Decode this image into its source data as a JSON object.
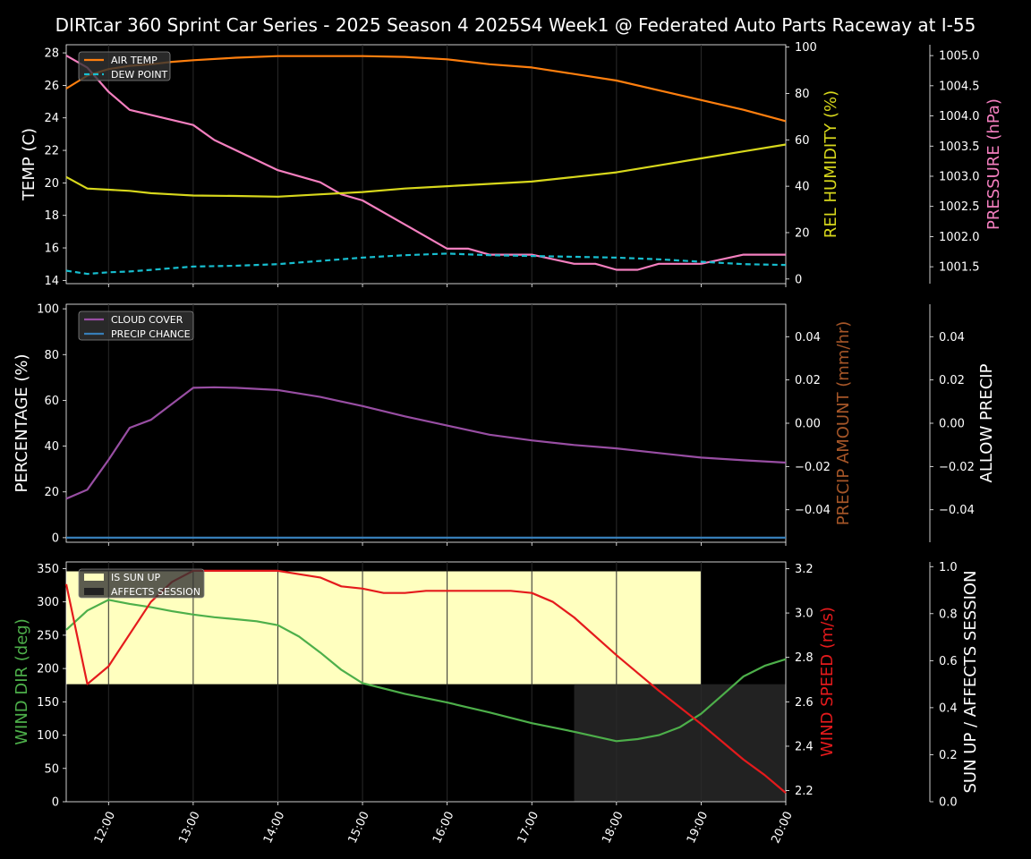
{
  "title": "DIRTcar 360 Sprint Car Series - 2025 Season 4 2025S4 Week1 @ Federated Auto Parts Raceway at I-55",
  "colors": {
    "air_temp": "#ff7f0e",
    "dew_point": "#17becf",
    "humidity": "#d8d81c",
    "pressure": "#f47fbf",
    "cloud": "#984ea3",
    "precip_chance": "#377eb8",
    "precip_amount": "#a65628",
    "wind_dir": "#4daf4a",
    "wind_speed": "#e41a1c",
    "sun_up": "#ffffbf",
    "affects_session": "#222222"
  },
  "chart_data": [
    {
      "type": "line",
      "panel": "atmosphere",
      "x_ticks": [
        "12:00",
        "13:00",
        "14:00",
        "15:00",
        "16:00",
        "17:00",
        "18:00",
        "19:00",
        "20:00"
      ],
      "xlim": [
        "11:30",
        "20:00"
      ],
      "axes": {
        "temp": {
          "label": "TEMP (C)",
          "ylim": [
            13.8,
            28.5
          ],
          "ticks": [
            "14",
            "16",
            "18",
            "20",
            "22",
            "24",
            "26",
            "28"
          ]
        },
        "humidity": {
          "label": "REL HUMIDITY (%)",
          "ylim": [
            -2,
            101
          ],
          "ticks": [
            "0",
            "20",
            "40",
            "60",
            "80",
            "100"
          ]
        },
        "pressure": {
          "label": "PRESSURE (hPa)",
          "ylim": [
            1001.22,
            1005.18
          ],
          "ticks": [
            "1001.5",
            "1002.0",
            "1002.5",
            "1003.0",
            "1003.5",
            "1004.0",
            "1004.5",
            "1005.0"
          ]
        }
      },
      "legend": [
        "AIR TEMP",
        "DEW POINT"
      ],
      "legend_position": "top-left",
      "series": [
        {
          "name": "AIR TEMP",
          "axis": "temp",
          "x": [
            "11:30",
            "11:45",
            "12:00",
            "12:15",
            "12:30",
            "12:45",
            "13:00",
            "13:30",
            "14:00",
            "14:30",
            "15:00",
            "15:30",
            "16:00",
            "16:30",
            "17:00",
            "17:30",
            "18:00",
            "18:30",
            "19:00",
            "19:30",
            "20:00"
          ],
          "values": [
            25.8,
            26.6,
            27.0,
            27.2,
            27.3,
            27.45,
            27.55,
            27.7,
            27.8,
            27.8,
            27.8,
            27.75,
            27.6,
            27.3,
            27.1,
            26.7,
            26.3,
            25.7,
            25.1,
            24.5,
            23.8
          ]
        },
        {
          "name": "DEW POINT",
          "axis": "temp",
          "x": [
            "11:30",
            "11:45",
            "12:00",
            "12:15",
            "12:30",
            "12:45",
            "13:00",
            "13:30",
            "14:00",
            "14:30",
            "15:00",
            "15:30",
            "16:00",
            "16:30",
            "17:00",
            "17:30",
            "18:00",
            "18:30",
            "19:00",
            "19:30",
            "20:00"
          ],
          "values": [
            14.6,
            14.4,
            14.5,
            14.55,
            14.65,
            14.75,
            14.85,
            14.9,
            15.0,
            15.2,
            15.4,
            15.55,
            15.65,
            15.55,
            15.5,
            15.45,
            15.4,
            15.3,
            15.15,
            15.0,
            14.95
          ]
        },
        {
          "name": "REL HUMIDITY",
          "axis": "humidity",
          "x": [
            "11:30",
            "11:45",
            "12:00",
            "12:15",
            "12:30",
            "12:45",
            "13:00",
            "13:30",
            "14:00",
            "14:30",
            "15:00",
            "15:30",
            "16:00",
            "16:30",
            "17:00",
            "17:30",
            "18:00",
            "18:30",
            "19:00",
            "19:30",
            "20:00"
          ],
          "values": [
            44,
            39,
            38.5,
            38,
            37,
            36.5,
            36,
            35.8,
            35.5,
            36.5,
            37.5,
            39,
            40,
            41,
            42,
            44,
            46,
            49,
            52,
            55,
            58
          ]
        },
        {
          "name": "PRESSURE",
          "axis": "pressure",
          "x": [
            "11:30",
            "11:45",
            "12:00",
            "12:15",
            "13:00",
            "13:15",
            "14:00",
            "14:30",
            "14:45",
            "15:00",
            "15:30",
            "16:00",
            "16:15",
            "16:30",
            "17:00",
            "17:30",
            "17:45",
            "18:00",
            "18:15",
            "18:30",
            "19:00",
            "19:30",
            "20:00"
          ],
          "values": [
            1005.0,
            1004.8,
            1004.4,
            1004.1,
            1003.85,
            1003.6,
            1003.1,
            1002.9,
            1002.7,
            1002.6,
            1002.2,
            1001.8,
            1001.8,
            1001.7,
            1001.7,
            1001.55,
            1001.55,
            1001.45,
            1001.45,
            1001.55,
            1001.55,
            1001.7,
            1001.7
          ]
        }
      ]
    },
    {
      "type": "line",
      "panel": "precipitation",
      "x_ticks": [
        "12:00",
        "13:00",
        "14:00",
        "15:00",
        "16:00",
        "17:00",
        "18:00",
        "19:00",
        "20:00"
      ],
      "xlim": [
        "11:30",
        "20:00"
      ],
      "axes": {
        "percentage": {
          "label": "PERCENTAGE (%)",
          "ylim": [
            -2,
            102
          ],
          "ticks": [
            "0",
            "20",
            "40",
            "60",
            "80",
            "100"
          ]
        },
        "precip_amount": {
          "label": "PRECIP AMOUNT (mm/hr)",
          "ylim": [
            -0.055,
            0.055
          ],
          "ticks": [
            "0.04",
            "0.02",
            "0.00",
            "−0.02",
            "−0.04"
          ]
        },
        "allow_precip": {
          "label": "ALLOW PRECIP",
          "ylim": [
            -0.055,
            0.055
          ],
          "ticks": [
            "0.04",
            "0.02",
            "0.00",
            "−0.02",
            "−0.04"
          ]
        }
      },
      "legend": [
        "CLOUD COVER",
        "PRECIP CHANCE"
      ],
      "legend_position": "top-left",
      "series": [
        {
          "name": "CLOUD COVER",
          "axis": "percentage",
          "x": [
            "11:30",
            "11:45",
            "12:00",
            "12:15",
            "12:30",
            "13:00",
            "13:15",
            "13:30",
            "14:00",
            "14:30",
            "15:00",
            "15:30",
            "16:00",
            "16:30",
            "17:00",
            "17:30",
            "18:00",
            "18:30",
            "19:00",
            "19:30",
            "20:00"
          ],
          "values": [
            17,
            21,
            34,
            48,
            51.5,
            65.5,
            65.7,
            65.5,
            64.5,
            61.5,
            57.5,
            53,
            49,
            45,
            42.5,
            40.5,
            39,
            37,
            35,
            33.8,
            32.8
          ]
        },
        {
          "name": "PRECIP CHANCE",
          "axis": "percentage",
          "x": [
            "11:30",
            "20:00"
          ],
          "values": [
            0,
            0
          ]
        }
      ]
    },
    {
      "type": "line",
      "panel": "wind",
      "x_ticks": [
        "12:00",
        "13:00",
        "14:00",
        "15:00",
        "16:00",
        "17:00",
        "18:00",
        "19:00",
        "20:00"
      ],
      "xlim": [
        "11:30",
        "20:00"
      ],
      "axes": {
        "wind_dir": {
          "label": "WIND DIR (deg)",
          "ylim": [
            0,
            360
          ],
          "ticks": [
            "0",
            "50",
            "100",
            "150",
            "200",
            "250",
            "300",
            "350"
          ]
        },
        "wind_speed": {
          "label": "WIND SPEED (m/s)",
          "ylim": [
            2.15,
            3.23
          ],
          "ticks": [
            "2.2",
            "2.4",
            "2.6",
            "2.8",
            "3.0",
            "3.2"
          ]
        },
        "sun_session": {
          "label": "SUN UP / AFFECTS SESSION",
          "ylim": [
            0,
            1.02
          ],
          "ticks": [
            "0.0",
            "0.2",
            "0.4",
            "0.6",
            "0.8",
            "1.0"
          ]
        }
      },
      "legend": [
        "IS SUN UP",
        "AFFECTS SESSION"
      ],
      "legend_position": "top-left",
      "bands": [
        {
          "name": "IS SUN UP",
          "x_start": "11:30",
          "x_end": "19:00",
          "y": [
            0.5,
            0.98
          ]
        },
        {
          "name": "AFFECTS SESSION",
          "x_start": "17:30",
          "x_end": "20:00",
          "y": [
            0,
            0.5
          ]
        }
      ],
      "series": [
        {
          "name": "WIND DIR",
          "axis": "wind_dir",
          "x": [
            "11:30",
            "11:45",
            "12:00",
            "12:15",
            "12:30",
            "12:45",
            "13:00",
            "13:15",
            "13:30",
            "13:45",
            "14:00",
            "14:15",
            "14:30",
            "14:45",
            "15:00",
            "15:30",
            "16:00",
            "16:30",
            "17:00",
            "17:30",
            "18:00",
            "18:15",
            "18:30",
            "18:45",
            "19:00",
            "19:15",
            "19:30",
            "19:45",
            "20:00"
          ],
          "values": [
            258,
            287,
            303,
            297,
            292,
            286,
            281,
            277,
            274,
            271,
            265,
            248,
            224,
            198,
            178,
            162,
            149,
            134,
            118,
            105,
            91,
            94,
            100,
            112,
            132,
            160,
            188,
            204,
            214
          ]
        },
        {
          "name": "WIND SPEED",
          "axis": "wind_speed",
          "x": [
            "11:30",
            "11:45",
            "12:00",
            "12:30",
            "12:45",
            "13:00",
            "13:15",
            "14:00",
            "14:30",
            "14:45",
            "15:00",
            "15:15",
            "15:30",
            "15:45",
            "16:00",
            "16:30",
            "16:45",
            "17:00",
            "17:15",
            "17:30",
            "18:00",
            "18:30",
            "19:00",
            "19:15",
            "19:30",
            "19:45",
            "20:00"
          ],
          "values": [
            3.13,
            2.68,
            2.76,
            3.05,
            3.14,
            3.19,
            3.19,
            3.19,
            3.16,
            3.12,
            3.11,
            3.09,
            3.09,
            3.1,
            3.1,
            3.1,
            3.1,
            3.09,
            3.05,
            2.98,
            2.81,
            2.65,
            2.5,
            2.42,
            2.34,
            2.27,
            2.19
          ]
        }
      ]
    }
  ]
}
